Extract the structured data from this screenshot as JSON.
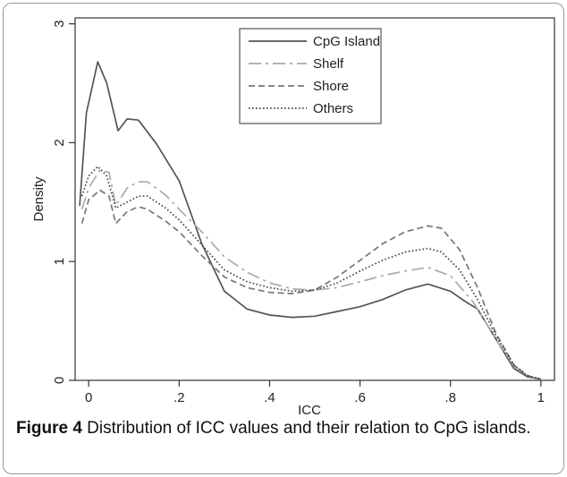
{
  "caption": {
    "label": "Figure 4",
    "text": " Distribution of ICC values and their relation to CpG islands."
  },
  "chart_data": {
    "type": "line",
    "title": "",
    "xlabel": "ICC",
    "ylabel": "Density",
    "xlim": [
      -0.03,
      1.03
    ],
    "ylim": [
      0,
      3.05
    ],
    "x_ticks": [
      {
        "value": 0,
        "label": "0"
      },
      {
        "value": 0.2,
        "label": ".2"
      },
      {
        "value": 0.4,
        "label": ".4"
      },
      {
        "value": 0.6,
        "label": ".6"
      },
      {
        "value": 0.8,
        "label": ".8"
      },
      {
        "value": 1,
        "label": "1"
      }
    ],
    "y_ticks": [
      {
        "value": 0,
        "label": "0"
      },
      {
        "value": 1,
        "label": "1"
      },
      {
        "value": 2,
        "label": "2"
      },
      {
        "value": 3,
        "label": "3"
      }
    ],
    "grid": false,
    "legend_position": "top-center",
    "series": [
      {
        "name": "CpG Island",
        "style": "solid",
        "color": "#555555",
        "x": [
          -0.02,
          -0.005,
          0.02,
          0.04,
          0.065,
          0.085,
          0.11,
          0.15,
          0.2,
          0.25,
          0.3,
          0.35,
          0.4,
          0.45,
          0.5,
          0.55,
          0.6,
          0.65,
          0.7,
          0.75,
          0.8,
          0.83,
          0.86,
          0.9,
          0.94,
          0.97,
          1.0
        ],
        "y": [
          1.47,
          2.25,
          2.68,
          2.5,
          2.1,
          2.2,
          2.19,
          1.99,
          1.68,
          1.15,
          0.75,
          0.6,
          0.55,
          0.53,
          0.54,
          0.58,
          0.62,
          0.68,
          0.76,
          0.81,
          0.75,
          0.67,
          0.6,
          0.35,
          0.1,
          0.03,
          0.01
        ]
      },
      {
        "name": "Shelf",
        "style": "dashdot",
        "color": "#aaaaaa",
        "x": [
          -0.015,
          0.0,
          0.025,
          0.045,
          0.06,
          0.085,
          0.11,
          0.13,
          0.17,
          0.2,
          0.25,
          0.3,
          0.35,
          0.4,
          0.45,
          0.5,
          0.55,
          0.6,
          0.65,
          0.7,
          0.75,
          0.8,
          0.85,
          0.9,
          0.94,
          0.97,
          1.0
        ],
        "y": [
          1.44,
          1.62,
          1.77,
          1.75,
          1.47,
          1.62,
          1.67,
          1.67,
          1.56,
          1.44,
          1.25,
          1.04,
          0.91,
          0.82,
          0.77,
          0.76,
          0.78,
          0.83,
          0.88,
          0.92,
          0.95,
          0.88,
          0.66,
          0.35,
          0.12,
          0.04,
          0.01
        ]
      },
      {
        "name": "Shore",
        "style": "dashed",
        "color": "#777777",
        "x": [
          -0.015,
          0.0,
          0.025,
          0.045,
          0.06,
          0.085,
          0.11,
          0.13,
          0.17,
          0.2,
          0.25,
          0.3,
          0.35,
          0.4,
          0.45,
          0.5,
          0.55,
          0.6,
          0.65,
          0.7,
          0.75,
          0.78,
          0.82,
          0.86,
          0.9,
          0.94,
          0.97,
          1.0
        ],
        "y": [
          1.32,
          1.52,
          1.6,
          1.55,
          1.32,
          1.42,
          1.46,
          1.44,
          1.34,
          1.25,
          1.05,
          0.87,
          0.78,
          0.74,
          0.73,
          0.76,
          0.87,
          1.01,
          1.15,
          1.25,
          1.3,
          1.28,
          1.1,
          0.78,
          0.4,
          0.13,
          0.04,
          0.01
        ]
      },
      {
        "name": "Others",
        "style": "dotted",
        "color": "#444444",
        "x": [
          -0.015,
          0.0,
          0.02,
          0.04,
          0.06,
          0.085,
          0.11,
          0.13,
          0.17,
          0.2,
          0.25,
          0.3,
          0.35,
          0.4,
          0.45,
          0.5,
          0.55,
          0.6,
          0.65,
          0.7,
          0.75,
          0.78,
          0.82,
          0.86,
          0.9,
          0.94,
          0.97,
          1.0
        ],
        "y": [
          1.55,
          1.72,
          1.8,
          1.72,
          1.45,
          1.5,
          1.55,
          1.55,
          1.45,
          1.35,
          1.14,
          0.93,
          0.83,
          0.78,
          0.75,
          0.76,
          0.82,
          0.92,
          1.01,
          1.08,
          1.11,
          1.08,
          0.93,
          0.68,
          0.38,
          0.13,
          0.04,
          0.01
        ]
      }
    ]
  }
}
